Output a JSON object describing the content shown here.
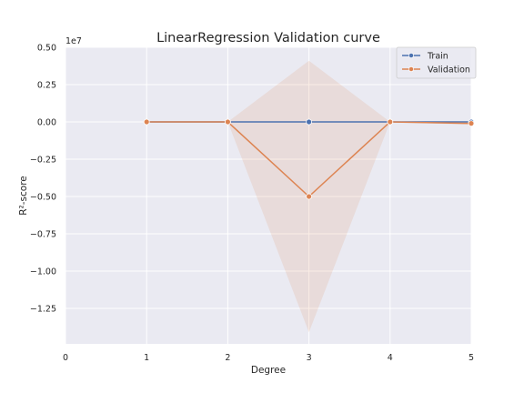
{
  "chart_data": {
    "type": "line",
    "title": "LinearRegression Validation curve",
    "xlabel": "Degree",
    "ylabel": "R²-score",
    "offset_label": "1e7",
    "xlim": [
      0,
      5
    ],
    "ylim": [
      -1.5,
      0.5
    ],
    "xticks": [
      0,
      1,
      2,
      3,
      4,
      5
    ],
    "yticks": [
      0.5,
      0.25,
      0.0,
      -0.25,
      -0.5,
      -0.75,
      -1.0,
      -1.25
    ],
    "ytick_labels": [
      "0.50",
      "0.25",
      "0.00",
      "−0.25",
      "−0.50",
      "−0.75",
      "−1.00",
      "−1.25"
    ],
    "grid": true,
    "legend_position": "top-right",
    "x": [
      1,
      2,
      3,
      4,
      5
    ],
    "series": [
      {
        "name": "Train",
        "color": "#4c72b0",
        "values": [
          0.0,
          0.0,
          0.0,
          0.0,
          0.0
        ]
      },
      {
        "name": "Validation",
        "color": "#dd8452",
        "values": [
          0.0,
          0.0,
          -0.5,
          0.0,
          -0.01
        ],
        "band_upper": [
          0.0,
          0.0,
          0.41,
          0.0,
          0.0
        ],
        "band_lower": [
          0.0,
          0.0,
          -1.41,
          0.0,
          -0.02
        ]
      }
    ]
  }
}
